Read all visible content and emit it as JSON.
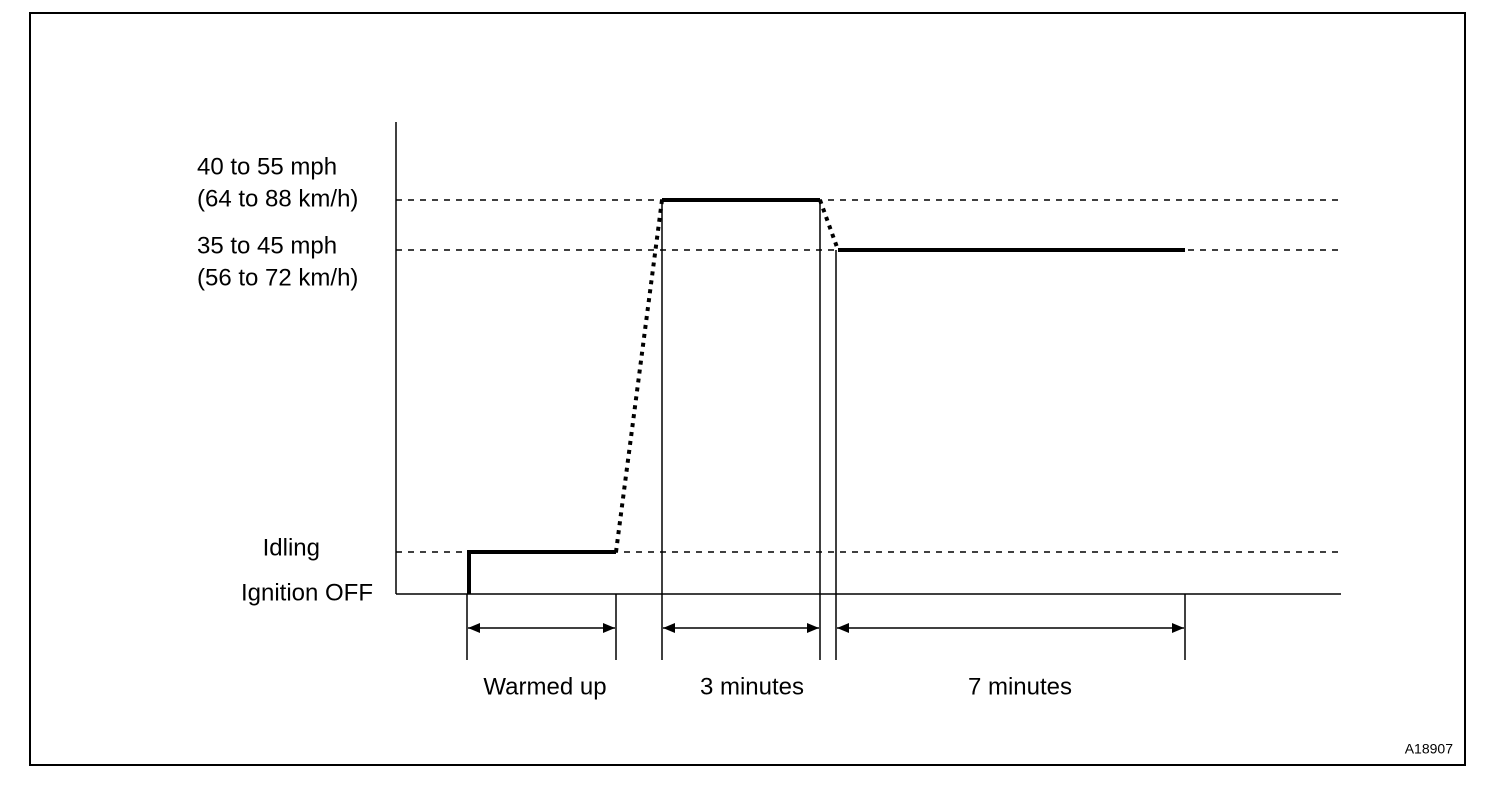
{
  "levels": [
    {
      "line1": "40 to 55 mph",
      "line2": "(64 to 88 km/h)"
    },
    {
      "line1": "35 to 45 mph",
      "line2": "(56 to 72 km/h)"
    }
  ],
  "idle_label": "Idling",
  "off_label": "Ignition OFF",
  "phases": [
    "Warmed up",
    "3 minutes",
    "7 minutes"
  ],
  "figure_id": "A18907"
}
